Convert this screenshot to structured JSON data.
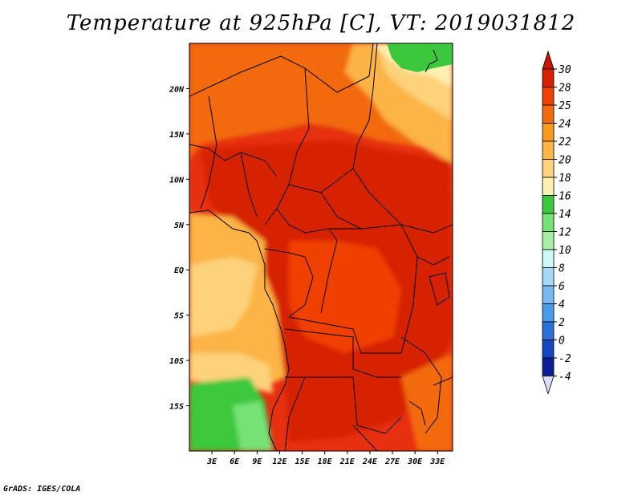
{
  "title": "Temperature at 925hPa [C], VT: 2019031812",
  "footer": "GrADS: IGES/COLA",
  "map": {
    "lon_range": [
      0,
      35
    ],
    "lat_range": [
      -20,
      25
    ],
    "lon_ticks": [
      {
        "value": 3,
        "label": "3E"
      },
      {
        "value": 6,
        "label": "6E"
      },
      {
        "value": 9,
        "label": "9E"
      },
      {
        "value": 12,
        "label": "12E"
      },
      {
        "value": 15,
        "label": "15E"
      },
      {
        "value": 18,
        "label": "18E"
      },
      {
        "value": 21,
        "label": "21E"
      },
      {
        "value": 24,
        "label": "24E"
      },
      {
        "value": 27,
        "label": "27E"
      },
      {
        "value": 30,
        "label": "30E"
      },
      {
        "value": 33,
        "label": "33E"
      }
    ],
    "lat_ticks": [
      {
        "value": 20,
        "label": "20N"
      },
      {
        "value": 15,
        "label": "15N"
      },
      {
        "value": 10,
        "label": "10N"
      },
      {
        "value": 5,
        "label": "5N"
      },
      {
        "value": 0,
        "label": "EQ"
      },
      {
        "value": -5,
        "label": "5S"
      },
      {
        "value": -10,
        "label": "10S"
      },
      {
        "value": -15,
        "label": "15S"
      }
    ]
  },
  "colorbar": {
    "levels": [
      "30",
      "28",
      "25",
      "24",
      "22",
      "20",
      "18",
      "16",
      "14",
      "12",
      "10",
      "8",
      "6",
      "4",
      "2",
      "0",
      "-2",
      "-4"
    ],
    "colors": [
      "#d62000",
      "#f04000",
      "#f26b10",
      "#f79a1e",
      "#fbb445",
      "#fdd27a",
      "#fdf0b0",
      "#3cc83c",
      "#76e276",
      "#a6f0a6",
      "#cdf8f8",
      "#a6d8f7",
      "#78baf0",
      "#4a9cea",
      "#2a72da",
      "#1446c0",
      "#0a1e96",
      "#05106a"
    ],
    "top_arrow_color": "#c81400",
    "bottom_arrow_color": "#dcdcf8"
  },
  "regions": [
    {
      "name": "sahara-east-warm",
      "color": "#fdf0b0"
    },
    {
      "name": "sahara-east-green",
      "color": "#3cc83c"
    },
    {
      "name": "interior-hot",
      "color": "#d62000"
    },
    {
      "name": "coastal-mild",
      "color": "#fbb445"
    },
    {
      "name": "namibia-green",
      "color": "#3cc83c"
    },
    {
      "name": "namibia-light-green",
      "color": "#76e276"
    }
  ]
}
